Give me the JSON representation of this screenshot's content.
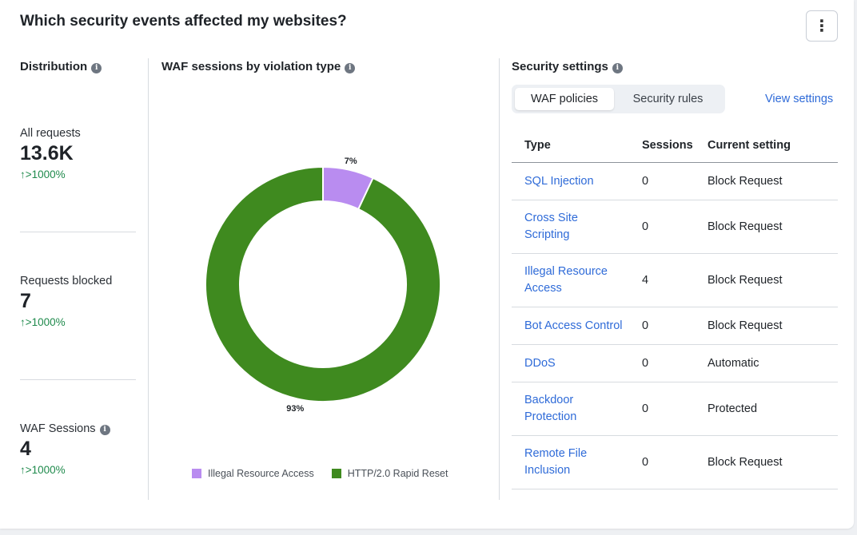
{
  "header": {
    "title": "Which security events affected my websites?",
    "menu_icon": "⋮"
  },
  "distribution": {
    "heading": "Distribution",
    "metrics": [
      {
        "label": "All requests",
        "value": "13.6K",
        "trend": "↑>1000%"
      },
      {
        "label": "Requests blocked",
        "value": "7",
        "trend": "↑>1000%"
      },
      {
        "label": "WAF Sessions",
        "value": "4",
        "trend": "↑>1000%"
      }
    ]
  },
  "waf_chart": {
    "heading": "WAF sessions by violation type"
  },
  "chart_data": {
    "type": "pie",
    "title": "WAF sessions by violation type",
    "categories": [
      "Illegal Resource Access",
      "HTTP/2.0 Rapid Reset"
    ],
    "values": [
      7,
      93
    ],
    "labels": [
      "7%",
      "93%"
    ],
    "colors": [
      "#b98cf0",
      "#3f8a1f"
    ],
    "donut": true,
    "legend": "bottom"
  },
  "security": {
    "heading": "Security settings",
    "tabs": [
      "WAF policies",
      "Security rules"
    ],
    "active_tab": "WAF policies",
    "view_settings": "View settings",
    "columns": [
      "Type",
      "Sessions",
      "Current setting"
    ],
    "rows": [
      {
        "type": "SQL Injection",
        "sessions": "0",
        "setting": "Block Request"
      },
      {
        "type": "Cross Site Scripting",
        "sessions": "0",
        "setting": "Block Request"
      },
      {
        "type": "Illegal Resource Access",
        "sessions": "4",
        "setting": "Block Request"
      },
      {
        "type": "Bot Access Control",
        "sessions": "0",
        "setting": "Block Request"
      },
      {
        "type": "DDoS",
        "sessions": "0",
        "setting": "Automatic"
      },
      {
        "type": "Backdoor Protection",
        "sessions": "0",
        "setting": "Protected"
      },
      {
        "type": "Remote File Inclusion",
        "sessions": "0",
        "setting": "Block Request"
      }
    ]
  }
}
